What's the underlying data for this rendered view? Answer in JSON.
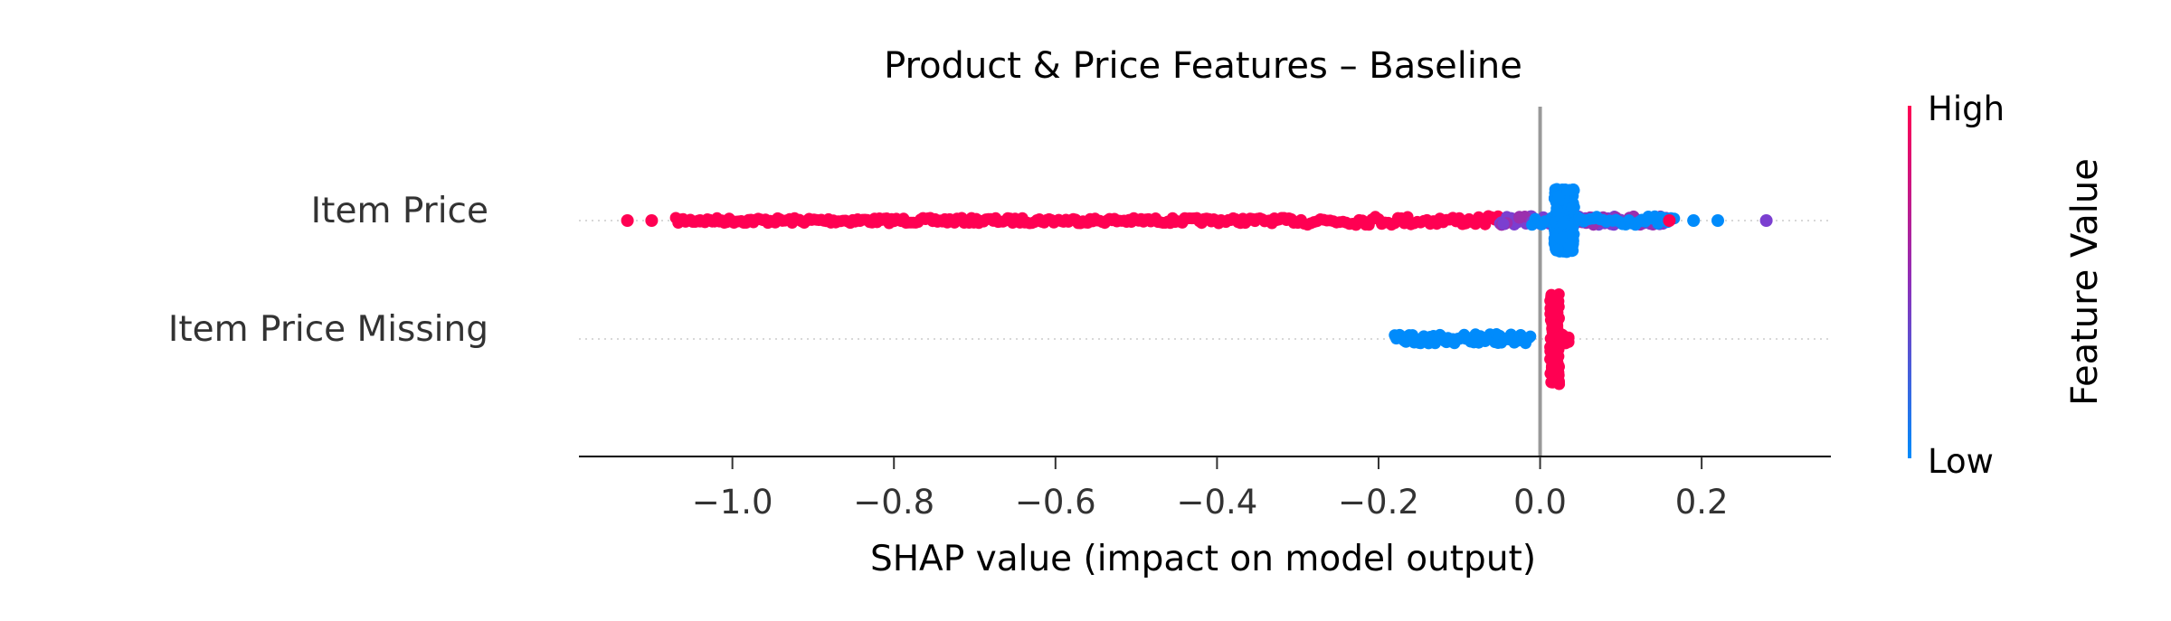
{
  "chart_data": {
    "type": "scatter",
    "subtype": "shap-beeswarm",
    "title": "Product & Price Features – Baseline",
    "xlabel": "SHAP value (impact on model output)",
    "xlim": [
      -1.19,
      0.36
    ],
    "xticks": [
      -1.0,
      -0.8,
      -0.6,
      -0.4,
      -0.2,
      0.0,
      0.2
    ],
    "xtick_labels": [
      "−1.0",
      "−0.8",
      "−0.6",
      "−0.4",
      "−0.2",
      "0.0",
      "0.2"
    ],
    "features": [
      {
        "name": "Item Price",
        "high_range": [
          -1.13,
          0.17
        ],
        "low_range": [
          -0.01,
          0.22
        ],
        "low_cluster_center": 0.03,
        "outliers": [
          {
            "x": -1.13,
            "level": "high"
          },
          {
            "x": -1.1,
            "level": "high"
          },
          {
            "x": -1.06,
            "level": "high"
          },
          {
            "x": -1.04,
            "level": "high"
          },
          {
            "x": -1.02,
            "level": "high"
          },
          {
            "x": 0.16,
            "level": "high"
          },
          {
            "x": 0.19,
            "level": "low"
          },
          {
            "x": 0.22,
            "level": "low"
          },
          {
            "x": 0.28,
            "level": "mid"
          }
        ]
      },
      {
        "name": "Item Price Missing",
        "low_range": [
          -0.18,
          -0.01
        ],
        "high_range": [
          0.01,
          0.03
        ],
        "high_cluster_center": 0.018
      }
    ],
    "colorbar": {
      "label": "Feature Value",
      "high_label": "High",
      "low_label": "Low",
      "high_color": "#ff0052",
      "low_color": "#008bfb"
    },
    "zero_line": true,
    "grid": false
  }
}
